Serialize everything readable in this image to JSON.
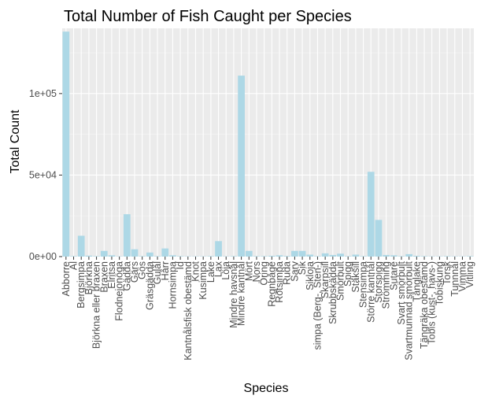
{
  "chart_data": {
    "type": "bar",
    "title": "Total Number of Fish Caught per Species",
    "xlabel": "Species",
    "ylabel": "Total Count",
    "ylim": [
      0,
      140000
    ],
    "yticks": [
      0,
      50000,
      100000
    ],
    "ytick_labels": [
      "0e+00",
      "5e+04",
      "1e+05"
    ],
    "grid": true,
    "legend": "none",
    "colors": {
      "bar": "#add8e6",
      "panel": "#ebebeb",
      "grid_major": "#ffffff"
    },
    "categories": [
      "Abborre",
      "Al",
      "Bergsimpa",
      "Björkna",
      "Björkna eller braxen",
      "Braxen",
      "Elritsa",
      "Flodnejonöga",
      "Gädda",
      "Gärs",
      "Gös",
      "Gräsgädda",
      "Gulål",
      "Hårr",
      "Hornsimpa",
      "Id",
      "Kantnålsfisk obestämd",
      "Knot",
      "Kusimpa",
      "Lake",
      "Lax",
      "Löja",
      "Mindre havsnål",
      "Mindre kantnål",
      "Mört",
      "Nors",
      "Öring",
      "Regnbåge",
      "Rötsimpa",
      "Ruda",
      "Sarv",
      "Sik",
      "Sikloja",
      "simpa (Berg-, Sten-)",
      "Skarpsill",
      "Skrubbskädda",
      "Smörbult",
      "Spigg",
      "Stäksill",
      "Stensimpa",
      "Större kantnål",
      "Storspigg",
      "Strömming",
      "Sutare",
      "Svart smörbult",
      "Svartmunnad smörbult",
      "Tånglake",
      "Tängräka obestämd",
      "Tobis (kust-, havs-)",
      "Tobiskung",
      "Torsk",
      "Tunnnål",
      "Vimma",
      "Vitling"
    ],
    "values": [
      138000,
      300,
      12800,
      600,
      300,
      3500,
      800,
      200,
      26000,
      4500,
      300,
      2500,
      300,
      5000,
      800,
      300,
      200,
      200,
      200,
      300,
      9500,
      200,
      300,
      111000,
      3500,
      300,
      300,
      500,
      800,
      400,
      3500,
      3500,
      1200,
      300,
      2000,
      1000,
      1800,
      300,
      1200,
      300,
      52000,
      22500,
      1000,
      800,
      300,
      1500,
      500,
      300,
      200,
      200,
      300,
      200,
      200,
      300
    ]
  }
}
